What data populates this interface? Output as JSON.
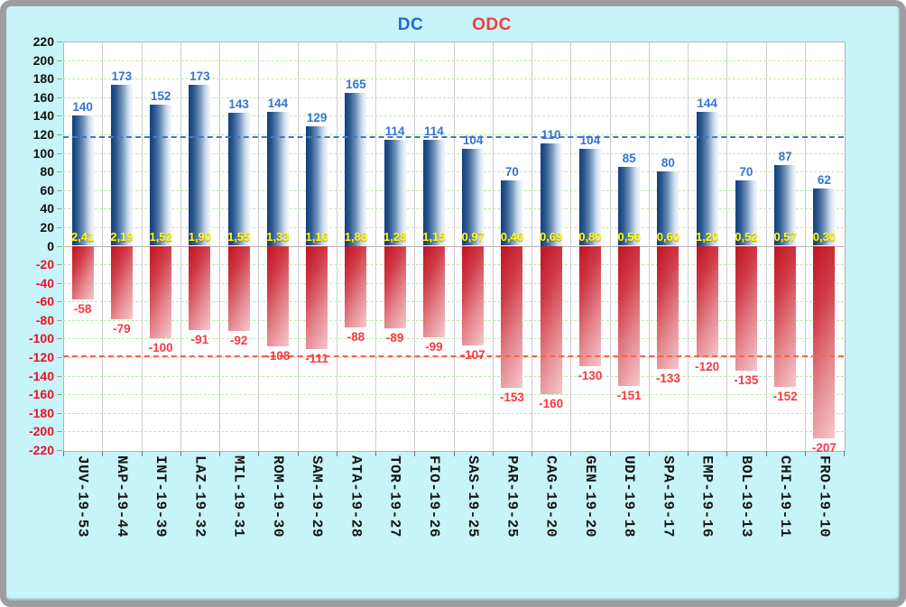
{
  "legend": {
    "dc": "DC",
    "odc": "ODC"
  },
  "colors": {
    "frame": "#9b9da0",
    "panel_bg": "#c7f4f8",
    "plot_bg": "#ffffff",
    "grid_h": "#b9e8a6",
    "grid_v": "#cccccc",
    "legend_dc": "#1d6bd4",
    "legend_odc": "#f43b3b",
    "dc_bar_dark": "#123f7e",
    "dc_bar_light": "#e4ecf5",
    "odc_bar_dark": "#c01424",
    "odc_bar_light": "#f5c9cc",
    "dc_value_label": "#3474d8",
    "odc_value_label": "#fb3744",
    "ratio_label": "#ffff05",
    "ytick_pos": "#111111",
    "ytick_neg": "#f20d1e",
    "ref_dc": "#4376c8",
    "ref_odc": "#f2664c"
  },
  "chart_data": {
    "type": "bar",
    "title": "",
    "xlabel": "",
    "ylabel": "",
    "categories": [
      "JUV-19-53",
      "NAP-19-44",
      "INT-19-39",
      "LAZ-19-32",
      "MIL-19-31",
      "ROM-19-30",
      "SAM-19-29",
      "ATA-19-28",
      "TOR-19-27",
      "FIO-19-26",
      "SAS-19-25",
      "PAR-19-25",
      "CAG-19-20",
      "GEN-19-20",
      "UDI-19-18",
      "SPA-19-17",
      "EMP-19-16",
      "BOL-19-13",
      "CHI-19-11",
      "FRO-19-10"
    ],
    "series": [
      {
        "name": "DC",
        "values": [
          140,
          173,
          152,
          173,
          143,
          144,
          129,
          165,
          114,
          114,
          104,
          70,
          110,
          104,
          85,
          80,
          144,
          70,
          87,
          62
        ]
      },
      {
        "name": "ODC",
        "values": [
          -58,
          -79,
          -100,
          -91,
          -92,
          -108,
          -111,
          -88,
          -89,
          -99,
          -107,
          -153,
          -160,
          -130,
          -151,
          -133,
          -120,
          -135,
          -152,
          -207
        ]
      }
    ],
    "ratio_labels": [
      "2,41",
      "2,19",
      "1,52",
      "1,90",
      "1,55",
      "1,33",
      "1,16",
      "1,88",
      "1,28",
      "1,15",
      "0,97",
      "0,46",
      "0,69",
      "0,80",
      "0,56",
      "0,60",
      "1,20",
      "0,52",
      "0,57",
      "0,30"
    ],
    "ylim": [
      -220,
      220
    ],
    "yticks": [
      220,
      200,
      180,
      160,
      140,
      120,
      100,
      80,
      60,
      40,
      20,
      0,
      -20,
      -40,
      -60,
      -80,
      -100,
      -120,
      -140,
      -160,
      -180,
      -200,
      -220
    ],
    "ref_lines": [
      {
        "series": "DC",
        "value": 118
      },
      {
        "series": "ODC",
        "value": -118
      }
    ],
    "grid": true,
    "legend_position": "top-center"
  }
}
